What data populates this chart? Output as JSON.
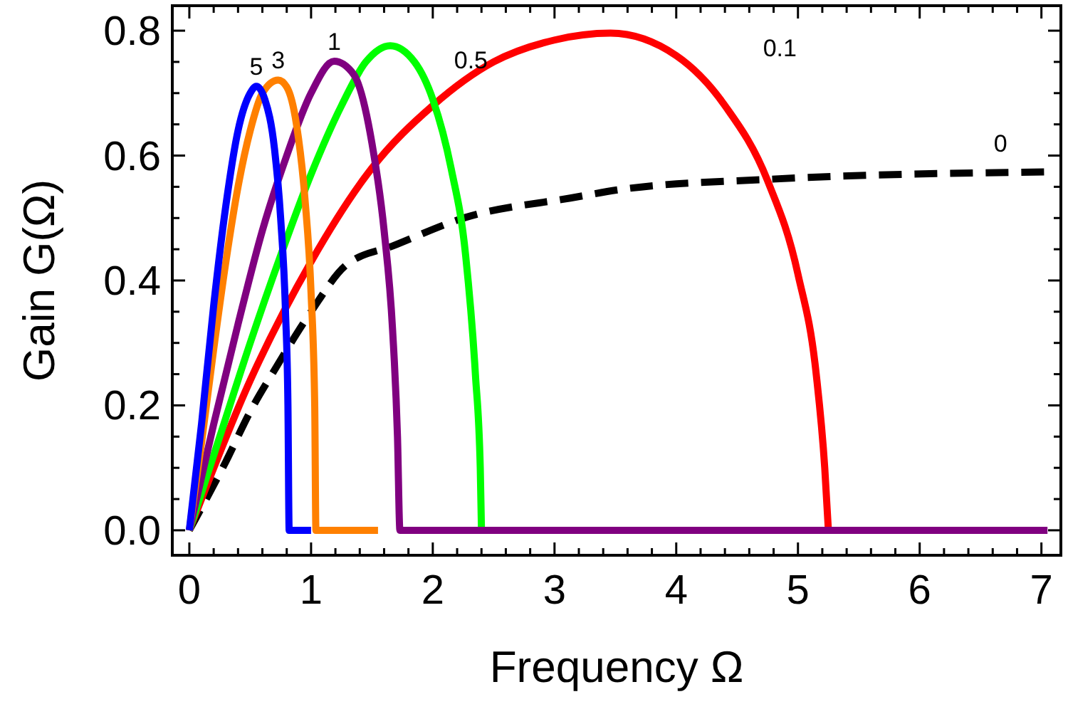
{
  "chart_data": {
    "type": "line",
    "xlabel": "Frequency Ω",
    "ylabel": "Gain G(Ω)",
    "xlim": [
      -0.14,
      7.16
    ],
    "ylim": [
      -0.04,
      0.84
    ],
    "xticks": [
      0,
      {
        "value": 0.2,
        "label": null
      },
      {
        "value": 0.4,
        "label": null
      },
      {
        "value": 0.6,
        "label": null
      },
      {
        "value": 0.8,
        "label": null
      },
      1,
      {
        "value": 1.2,
        "label": null
      },
      {
        "value": 1.4,
        "label": null
      },
      {
        "value": 1.6,
        "label": null
      },
      {
        "value": 1.8,
        "label": null
      },
      2,
      {
        "value": 2.2,
        "label": null
      },
      {
        "value": 2.4,
        "label": null
      },
      {
        "value": 2.6,
        "label": null
      },
      {
        "value": 2.8,
        "label": null
      },
      3,
      {
        "value": 3.2,
        "label": null
      },
      {
        "value": 3.4,
        "label": null
      },
      {
        "value": 3.6,
        "label": null
      },
      {
        "value": 3.8,
        "label": null
      },
      4,
      {
        "value": 4.2,
        "label": null
      },
      {
        "value": 4.4,
        "label": null
      },
      {
        "value": 4.6,
        "label": null
      },
      {
        "value": 4.8,
        "label": null
      },
      5,
      {
        "value": 5.2,
        "label": null
      },
      {
        "value": 5.4,
        "label": null
      },
      {
        "value": 5.6,
        "label": null
      },
      {
        "value": 5.8,
        "label": null
      },
      6,
      {
        "value": 6.2,
        "label": null
      },
      {
        "value": 6.4,
        "label": null
      },
      {
        "value": 6.6,
        "label": null
      },
      {
        "value": 6.8,
        "label": null
      },
      7
    ],
    "yticks": [
      {
        "value": 0,
        "label": "0.0"
      },
      {
        "value": 0.05,
        "label": null
      },
      {
        "value": 0.1,
        "label": null
      },
      {
        "value": 0.15,
        "label": null
      },
      {
        "value": 0.2,
        "label": "0.2"
      },
      {
        "value": 0.25,
        "label": null
      },
      {
        "value": 0.3,
        "label": null
      },
      {
        "value": 0.35,
        "label": null
      },
      {
        "value": 0.4,
        "label": "0.4"
      },
      {
        "value": 0.45,
        "label": null
      },
      {
        "value": 0.5,
        "label": null
      },
      {
        "value": 0.55,
        "label": null
      },
      {
        "value": 0.6,
        "label": "0.6"
      },
      {
        "value": 0.65,
        "label": null
      },
      {
        "value": 0.7,
        "label": null
      },
      {
        "value": 0.75,
        "label": null
      },
      {
        "value": 0.8,
        "label": "0.8"
      }
    ],
    "grid": false,
    "annotations": [
      "0",
      "0.1",
      "0.5",
      "1",
      "3",
      "5"
    ],
    "series": [
      {
        "color": "#000000",
        "line_style": "dashed",
        "x": [
          0,
          0.3,
          0.5,
          0.71,
          1.0,
          1.29,
          1.68,
          2.27,
          3.13,
          3.59,
          4.76,
          7.07
        ],
        "values": [
          0,
          0.11,
          0.19,
          0.26,
          0.35,
          0.425,
          0.456,
          0.501,
          0.532,
          0.547,
          0.562,
          0.574
        ]
      },
      {
        "color": "#ff0000",
        "x": [
          0,
          0.5,
          1.0,
          1.5,
          2.0,
          2.5,
          3.0,
          3.46,
          4.0,
          4.4,
          4.75,
          5.0,
          5.15,
          5.22,
          5.25
        ],
        "values": [
          0,
          0.24,
          0.43,
          0.58,
          0.68,
          0.75,
          0.785,
          0.796,
          0.76,
          0.68,
          0.56,
          0.41,
          0.25,
          0.1,
          0
        ]
      },
      {
        "color": "#00ff00",
        "x": [
          0,
          0.25,
          0.5,
          0.75,
          1.0,
          1.25,
          1.45,
          1.65,
          1.85,
          2.0,
          2.15,
          2.27,
          2.35,
          2.39,
          2.4
        ],
        "values": [
          0,
          0.15,
          0.3,
          0.44,
          0.57,
          0.68,
          0.75,
          0.776,
          0.75,
          0.69,
          0.58,
          0.44,
          0.25,
          0.1,
          0
        ]
      },
      {
        "color": "#800080",
        "x": [
          0,
          0.2,
          0.4,
          0.6,
          0.8,
          1.0,
          1.19,
          1.35,
          1.5,
          1.6,
          1.67,
          1.71,
          1.73,
          7.05
        ],
        "values": [
          0,
          0.17,
          0.33,
          0.48,
          0.6,
          0.7,
          0.751,
          0.73,
          0.62,
          0.48,
          0.32,
          0.15,
          0,
          0
        ]
      },
      {
        "color": "#ff8000",
        "x": [
          0,
          0.1,
          0.2,
          0.3,
          0.4,
          0.5,
          0.6,
          0.73,
          0.8,
          0.88,
          0.95,
          1.0,
          1.03,
          1.04,
          1.55
        ],
        "values": [
          0,
          0.14,
          0.29,
          0.43,
          0.55,
          0.64,
          0.7,
          0.721,
          0.71,
          0.65,
          0.53,
          0.38,
          0.2,
          0,
          0
        ]
      },
      {
        "color": "#0000ff",
        "x": [
          0,
          0.1,
          0.2,
          0.3,
          0.4,
          0.5,
          0.55,
          0.62,
          0.7,
          0.75,
          0.79,
          0.81,
          0.82,
          1.0
        ],
        "values": [
          0,
          0.17,
          0.36,
          0.52,
          0.64,
          0.7,
          0.711,
          0.69,
          0.61,
          0.5,
          0.35,
          0.2,
          0,
          0
        ]
      }
    ]
  }
}
